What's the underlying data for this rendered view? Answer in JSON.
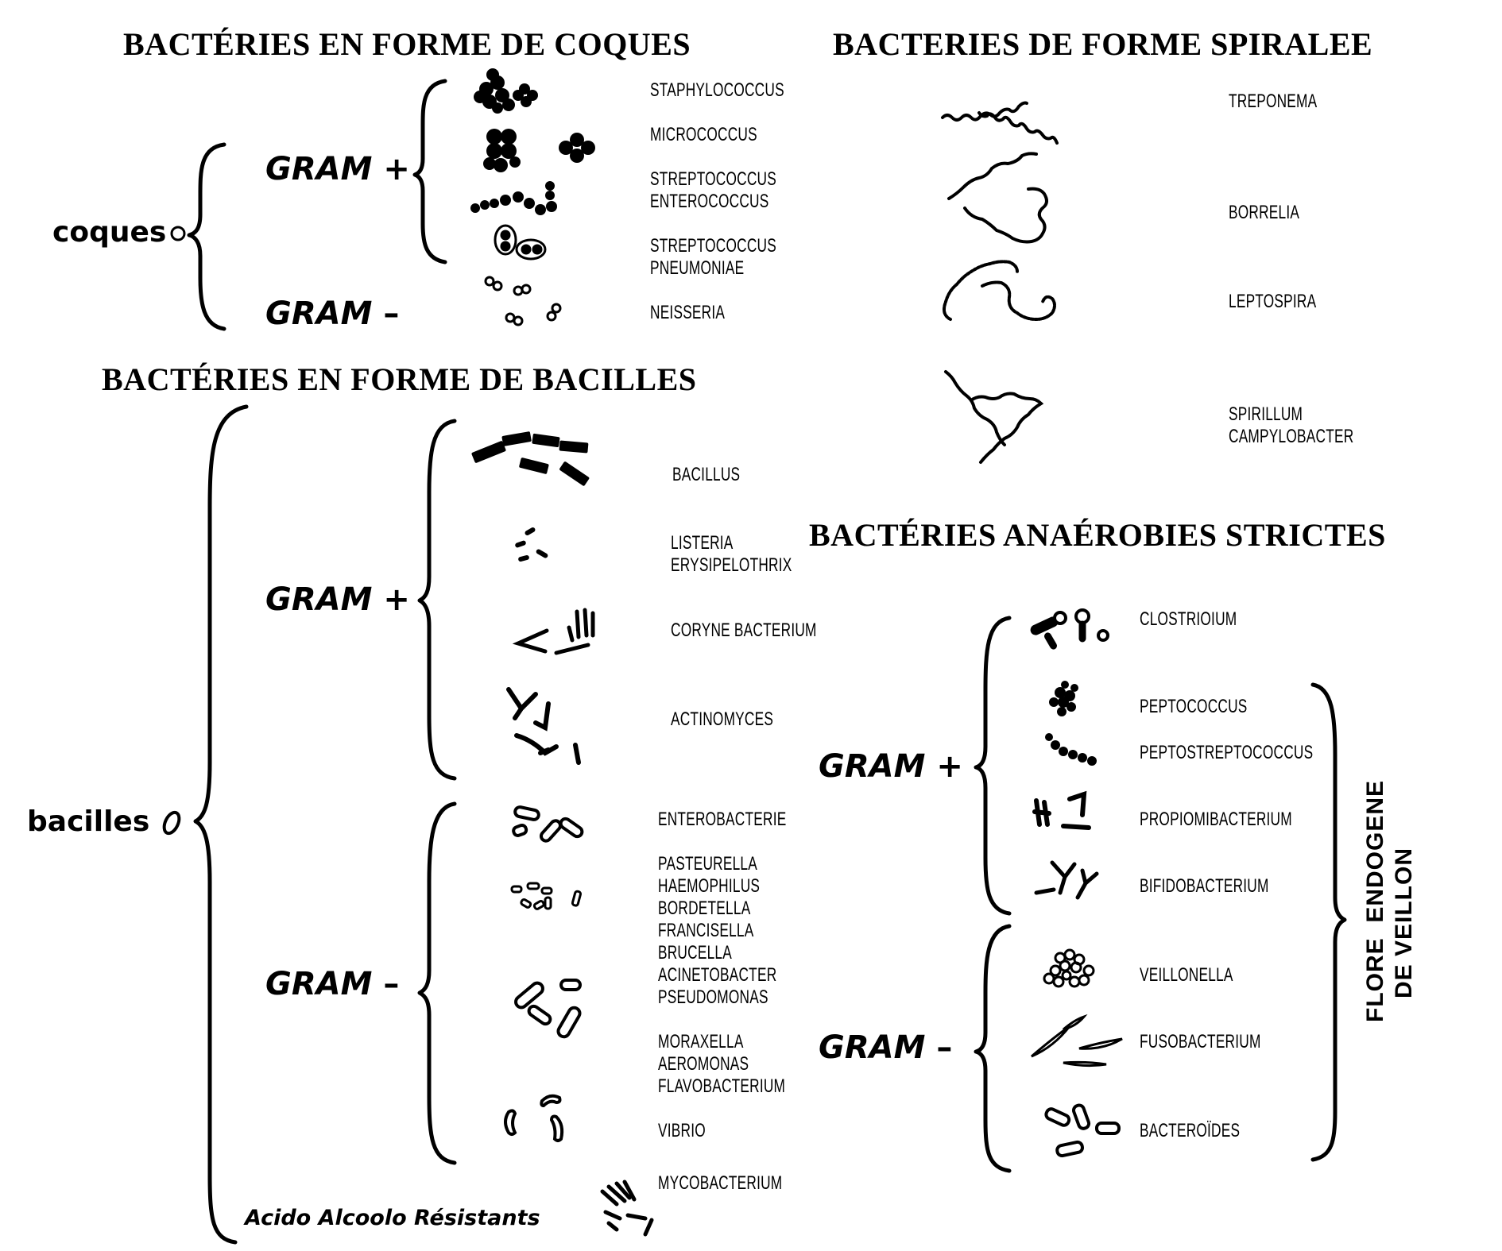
{
  "titles": {
    "coques": "BACTÉRIES EN FORME DE COQUES",
    "spiralee": "BACTERIES DE FORME SPIRALEE",
    "bacilles": "BACTÉRIES EN FORME DE BACILLES",
    "anaerobies": "BACTÉRIES ANAÉROBIES STRICTES"
  },
  "categories": {
    "coques": "coques",
    "bacilles": "bacilles"
  },
  "gram": {
    "label": "GRAM",
    "plus": "+",
    "minus": "–"
  },
  "coques_labels": [
    "STAPHYLOCOCCUS",
    "MICROCOCCUS",
    "STREPTOCOCCUS\nENTEROCOCCUS",
    "STREPTOCOCCUS\nPNEUMONIAE",
    "NEISSERIA"
  ],
  "spiral_labels": [
    "TREPONEMA",
    "BORRELIA",
    "LEPTOSPIRA",
    "SPIRILLUM\nCAMPYLOBACTER"
  ],
  "bacilles_labels": [
    "BACILLUS",
    "LISTERIA\nERYSIPELOTHRIX",
    "CORYNE BACTERIUM",
    "ACTINOMYCES",
    "ENTEROBACTERIE",
    "PASTEURELLA\nHAEMOPHILUS\nBORDETELLA\nFRANCISELLA\nBRUCELLA\nACINETOBACTER\nPSEUDOMONAS",
    "MORAXELLA\nAEROMONAS\nFLAVOBACTERIUM",
    "VIBRIO",
    "MYCOBACTERIUM"
  ],
  "acido": "Acido Alcoolo Résistants",
  "anaerobies_labels": [
    "CLOSTRIOIUM",
    "PEPTOCOCCUS",
    "PEPTOSTREPTOCOCCUS",
    "PROPIOMIBACTERIUM",
    "BIFIDOBACTERIUM",
    "VEILLONELLA",
    "FUSOBACTERIUM",
    "BACTEROÏDES"
  ],
  "flore": "FLORE  ENDOGENE\nDE VEILLON"
}
